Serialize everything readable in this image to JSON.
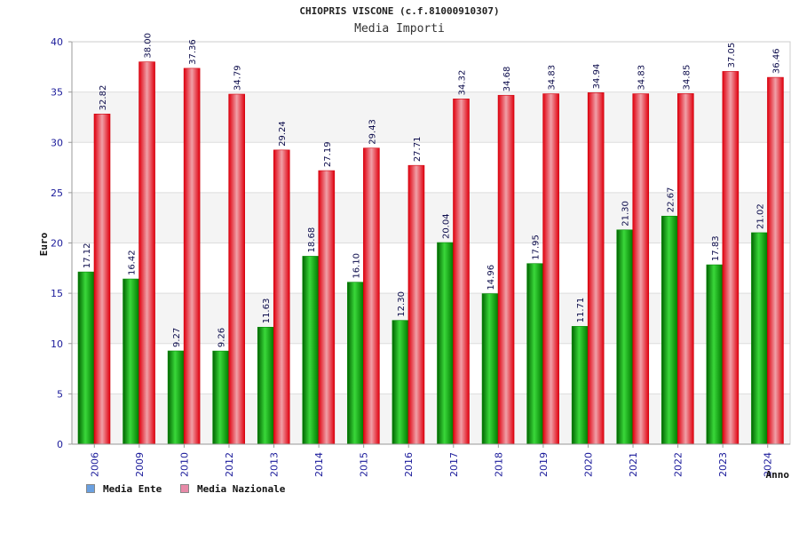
{
  "chart_data": {
    "type": "bar",
    "title": "CHIOPRIS VISCONE (c.f.81000910307)",
    "subtitle": "Media Importi",
    "ylabel": "Euro",
    "xlabel": "Anno",
    "ylim": [
      0,
      40
    ],
    "yticks": [
      0,
      5,
      10,
      15,
      20,
      25,
      30,
      35,
      40
    ],
    "grid": true,
    "legend_position": "bottom-left",
    "categories": [
      "2006",
      "2009",
      "2010",
      "2012",
      "2013",
      "2014",
      "2015",
      "2016",
      "2017",
      "2018",
      "2019",
      "2020",
      "2021",
      "2022",
      "2023",
      "2024"
    ],
    "series": [
      {
        "name": "Media Ente",
        "color": "#00a000",
        "legend_color": "#6aa0e0",
        "values": [
          17.12,
          16.42,
          9.27,
          9.26,
          11.63,
          18.68,
          16.1,
          12.3,
          20.04,
          14.96,
          17.95,
          11.71,
          21.3,
          22.67,
          17.83,
          21.02
        ],
        "labels": [
          "17.12",
          "16.42",
          "9.27",
          "9.26",
          "11.63",
          "18.68",
          "16.10",
          "12.30",
          "20.04",
          "14.96",
          "17.95",
          "11.71",
          "21.30",
          "22.67",
          "17.83",
          "21.02"
        ]
      },
      {
        "name": "Media Nazionale",
        "color": "#e8101c",
        "legend_color": "#e88aa8",
        "values": [
          32.82,
          38.0,
          37.36,
          34.79,
          29.24,
          27.19,
          29.43,
          27.71,
          34.32,
          34.68,
          34.83,
          34.94,
          34.83,
          34.85,
          37.05,
          36.46
        ],
        "labels": [
          "32.82",
          "38.00",
          "37.36",
          "34.79",
          "29.24",
          "27.19",
          "29.43",
          "27.71",
          "34.32",
          "34.68",
          "34.83",
          "34.94",
          "34.83",
          "34.85",
          "37.05",
          "36.46"
        ]
      }
    ]
  }
}
